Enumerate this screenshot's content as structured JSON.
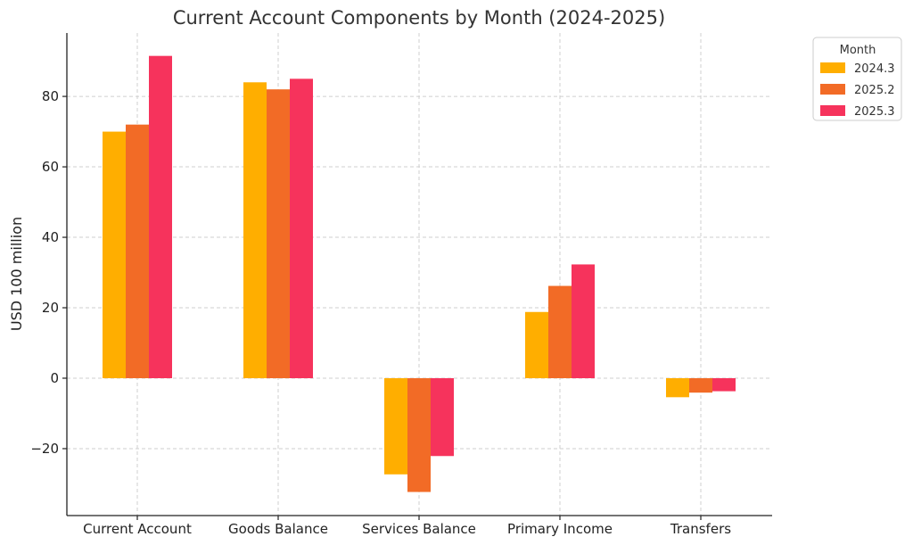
{
  "chart_data": {
    "type": "bar",
    "title": "Current Account Components by Month (2024-2025)",
    "xlabel": "",
    "ylabel": "USD 100 million",
    "categories": [
      "Current Account",
      "Goods Balance",
      "Services Balance",
      "Primary Income",
      "Transfers"
    ],
    "series": [
      {
        "name": "2024.3",
        "color": "#FFAE00",
        "values": [
          70.0,
          84.0,
          -27.3,
          18.8,
          -5.4
        ]
      },
      {
        "name": "2025.2",
        "color": "#F26B26",
        "values": [
          72.0,
          82.0,
          -32.3,
          26.2,
          -4.1
        ]
      },
      {
        "name": "2025.3",
        "color": "#F6335C",
        "values": [
          91.5,
          85.0,
          -22.1,
          32.3,
          -3.7
        ]
      }
    ],
    "ylim": [
      -39,
      98
    ],
    "yticks": [
      -20,
      0,
      20,
      40,
      60,
      80
    ],
    "ytick_labels": [
      "−20",
      "0",
      "20",
      "40",
      "60",
      "80"
    ],
    "grid": true,
    "legend": {
      "title": "Month",
      "placement": "outside-top-right"
    }
  }
}
